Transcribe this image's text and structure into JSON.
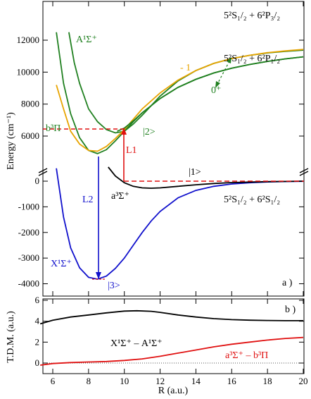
{
  "chart_data": [
    {
      "type": "line",
      "panel_label": "a )",
      "ylabel": "Energy (cm⁻¹)",
      "x_ticks": [
        "6",
        "8",
        "10",
        "12",
        "14",
        "16",
        "18",
        "20"
      ],
      "xlim": [
        5.3,
        20
      ],
      "y_axis_break": "between 0 and 5000",
      "y_upper_ticks": [
        "6000",
        "8000",
        "10000",
        "12000"
      ],
      "y_lower_ticks": [
        "0",
        "-1000",
        "-2000",
        "-3000",
        "-4000"
      ],
      "series": [
        {
          "name": "X¹Σ⁺",
          "color": "#1010cc",
          "x": [
            6.2,
            6.6,
            7.0,
            7.5,
            8.0,
            8.5,
            9.0,
            9.5,
            10.0,
            10.5,
            11.0,
            11.5,
            12.0,
            13.0,
            14.0,
            15.0,
            16.0,
            17.0,
            18.0,
            19.0,
            20.0
          ],
          "y": [
            500,
            -1400,
            -2600,
            -3380,
            -3750,
            -3820,
            -3700,
            -3400,
            -3000,
            -2500,
            -2000,
            -1550,
            -1180,
            -650,
            -360,
            -200,
            -110,
            -60,
            -30,
            -15,
            -5
          ]
        },
        {
          "name": "a³Σ⁺",
          "color": "#000000",
          "x": [
            9.1,
            9.5,
            10.0,
            10.5,
            11.0,
            11.5,
            12.0,
            13.0,
            14.0,
            15.0,
            16.0,
            17.0,
            18.0,
            19.0,
            20.0
          ],
          "y": [
            550,
            200,
            -60,
            -200,
            -260,
            -275,
            -260,
            -200,
            -140,
            -90,
            -55,
            -35,
            -20,
            -10,
            0
          ]
        },
        {
          "name": "A¹Σ⁺",
          "color": "#208020",
          "x": [
            6.2,
            6.6,
            7.0,
            7.5,
            8.0,
            8.5,
            9.0,
            9.5,
            10.0,
            10.5,
            11.0,
            12.0,
            13.0,
            14.0,
            15.0,
            16.0,
            17.0,
            18.0,
            19.0,
            20.0
          ],
          "y": [
            12500,
            9300,
            7400,
            5900,
            5100,
            4900,
            5150,
            5700,
            6300,
            6900,
            7450,
            8350,
            9050,
            9550,
            9950,
            10250,
            10480,
            10670,
            10830,
            10960
          ]
        },
        {
          "name": "b³Π",
          "color": "#208020",
          "x": [
            6.9,
            7.2,
            7.5,
            8.0,
            8.5,
            9.0,
            9.5,
            10.0,
            10.5,
            11.0,
            11.5,
            12.0,
            13.0,
            14.0,
            15.0,
            16.0,
            17.0,
            18.0,
            19.0,
            20.0
          ],
          "y": [
            12500,
            10600,
            9300,
            7700,
            6900,
            6400,
            6200,
            6300,
            6750,
            7300,
            7900,
            8500,
            9450,
            10100,
            10550,
            10850,
            11050,
            11200,
            11300,
            11380
          ]
        },
        {
          "name": "- 1",
          "color": "#e8a400",
          "x": [
            6.2,
            6.6,
            7.0,
            7.5,
            8.0,
            8.5,
            9.0,
            9.5,
            10.0,
            10.5,
            11.0,
            12.0,
            13.0,
            14.0,
            15.0,
            16.0,
            17.0,
            18.0,
            19.0,
            20.0
          ],
          "y": [
            9200,
            7700,
            6300,
            5500,
            5100,
            5050,
            5350,
            5850,
            6400,
            7050,
            7700,
            8700,
            9500,
            10100,
            10550,
            10850,
            11050,
            11220,
            11330,
            11420
          ]
        },
        {
          "name": "0⁺",
          "color": "#208020",
          "x": [
            9.6,
            10.0,
            10.5,
            11.0,
            12.0,
            13.0,
            14.0,
            15.0,
            16.0,
            17.0,
            18.0,
            19.0,
            20.0
          ],
          "y": [
            6300,
            6500,
            6950,
            7450,
            8350,
            9050,
            9550,
            9950,
            10250,
            10480,
            10670,
            10830,
            10960
          ]
        }
      ],
      "annotations": {
        "A_state": "A¹Σ⁺",
        "b_state": "b³Π",
        "X_state": "X¹Σ⁺",
        "a_state": "a³Σ⁺",
        "minus1": "- 1",
        "zero_plus": "0⁺",
        "ket1": "|1>",
        "ket2": "|2>",
        "ket3": "|3>",
        "L1": "L1",
        "L2": "L2",
        "asym_upper": "5²S₁/₂ + 6²P₃/₂",
        "asym_mid": "5²S₁/₂ + 6²P₁/₂",
        "asym_lower": "5²S₁/₂ + 6²S₁/₂"
      }
    },
    {
      "type": "line",
      "panel_label": "b )",
      "ylabel": "T.D.M. (a.u.)",
      "xlabel": "R (a.u.)",
      "ylim": [
        -1,
        6
      ],
      "y_ticks": [
        "0",
        "2",
        "4",
        "6"
      ],
      "series": [
        {
          "name": "X¹Σ⁺ – A¹Σ⁺",
          "color": "#000000",
          "x": [
            5.3,
            6.0,
            7.0,
            8.0,
            9.0,
            10.0,
            10.7,
            11.5,
            12.0,
            13.0,
            14.0,
            15.0,
            16.0,
            17.0,
            18.0,
            19.0,
            20.0
          ],
          "y": [
            3.75,
            4.1,
            4.4,
            4.6,
            4.8,
            4.97,
            5.0,
            4.95,
            4.85,
            4.6,
            4.4,
            4.25,
            4.15,
            4.1,
            4.07,
            4.05,
            4.05
          ]
        },
        {
          "name": "a³Σ⁺ – b³Π",
          "color": "#e01010",
          "x": [
            5.3,
            6.0,
            7.0,
            8.0,
            9.0,
            10.0,
            11.0,
            12.0,
            13.0,
            14.0,
            15.0,
            16.0,
            17.0,
            18.0,
            19.0,
            20.0
          ],
          "y": [
            -0.2,
            -0.05,
            0.05,
            0.1,
            0.15,
            0.25,
            0.4,
            0.65,
            0.95,
            1.25,
            1.55,
            1.8,
            2.0,
            2.2,
            2.35,
            2.45
          ]
        }
      ]
    }
  ]
}
